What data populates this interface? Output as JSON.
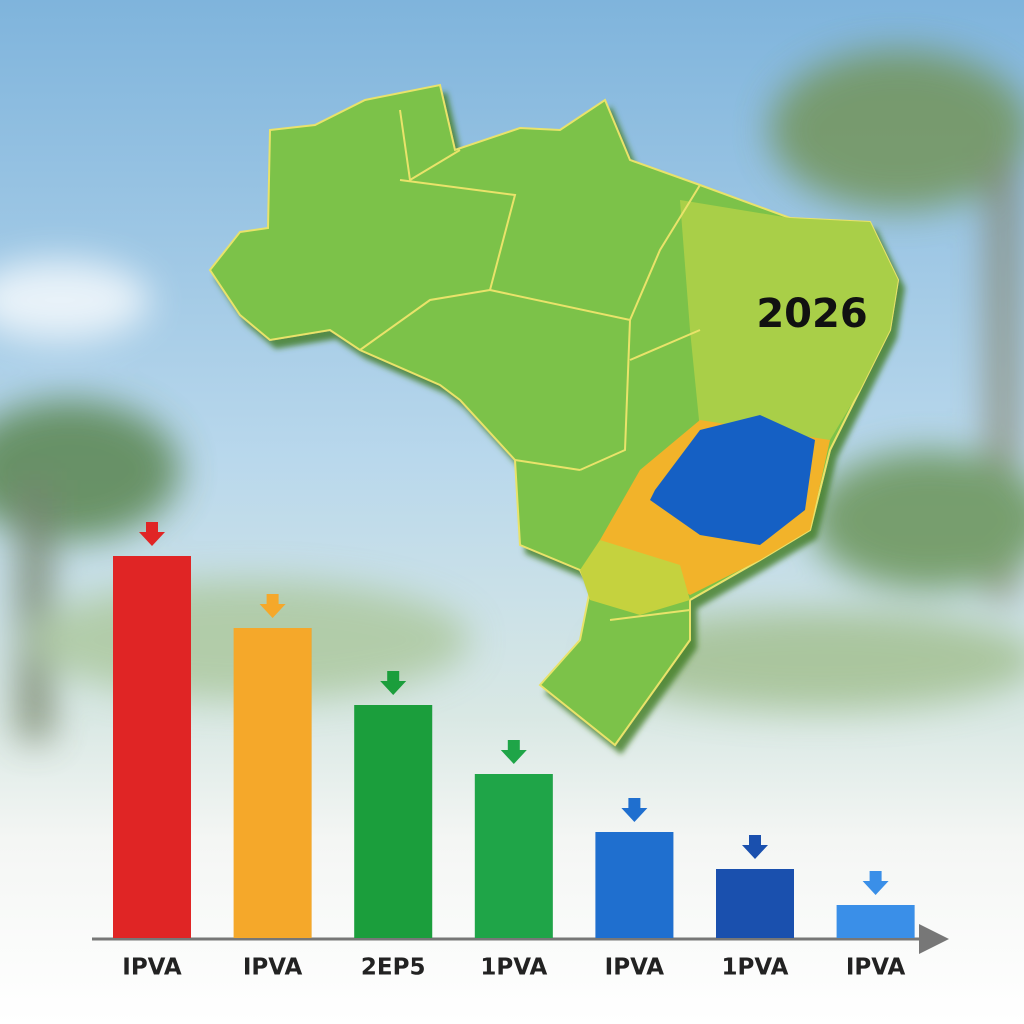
{
  "chart_data": {
    "type": "bar",
    "annotation": "2026",
    "categories": [
      "IPVA",
      "IPVA",
      "2EP5",
      "1PVA",
      "IPVA",
      "1PVA",
      "IPVA"
    ],
    "values": [
      382,
      310,
      233,
      164,
      106,
      69,
      33
    ],
    "colors": [
      "#e02525",
      "#f5a82a",
      "#1b9e3c",
      "#1fa548",
      "#1f6fcf",
      "#1a50ae",
      "#3a8fe8"
    ]
  }
}
